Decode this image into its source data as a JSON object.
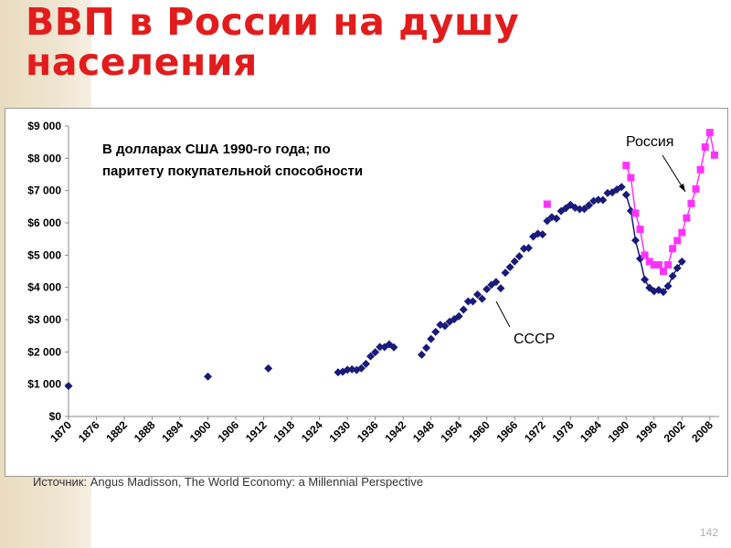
{
  "slide": {
    "title_line1": "ВВП в России на душу",
    "title_line2": "населения",
    "source": "Источник: Angus Madisson, The World Economy: a Millennial Perspective",
    "page_number": "142"
  },
  "colors": {
    "title": "#e21c1c",
    "ussr_series": "#1a1a7a",
    "russia_series": "#ff33ff",
    "background_stripe": "#ebdfc5"
  },
  "chart_data": {
    "type": "scatter",
    "title": "",
    "xlabel": "",
    "ylabel": "",
    "xlim": [
      1870,
      2010
    ],
    "ylim": [
      0,
      9000
    ],
    "grid": false,
    "legend": "none",
    "x_tick_labels": [
      "1870",
      "1876",
      "1882",
      "1888",
      "1894",
      "1900",
      "1906",
      "1912",
      "1918",
      "1924",
      "1930",
      "1936",
      "1942",
      "1948",
      "1954",
      "1960",
      "1966",
      "1972",
      "1978",
      "1984",
      "1990",
      "1996",
      "2002",
      "2008"
    ],
    "y_tick_labels": [
      "$0",
      "$1 000",
      "$2 000",
      "$3 000",
      "$4 000",
      "$5 000",
      "$6 000",
      "$7 000",
      "$8 000",
      "$9 000"
    ],
    "y_tick_values": [
      0,
      1000,
      2000,
      3000,
      4000,
      5000,
      6000,
      7000,
      8000,
      9000
    ],
    "annotations": {
      "note_line1": "В долларах США 1990-го года; по",
      "note_line2": "паритету покупательной способности",
      "russia_label": "Россия",
      "ussr_label": "СССР"
    },
    "series": [
      {
        "name": "СССР",
        "marker": "diamond",
        "connected_from_year": 1990,
        "points": [
          [
            1870,
            943
          ],
          [
            1900,
            1237
          ],
          [
            1913,
            1488
          ],
          [
            1928,
            1370
          ],
          [
            1929,
            1386
          ],
          [
            1930,
            1448
          ],
          [
            1931,
            1462
          ],
          [
            1932,
            1439
          ],
          [
            1933,
            1493
          ],
          [
            1934,
            1630
          ],
          [
            1935,
            1864
          ],
          [
            1936,
            1991
          ],
          [
            1937,
            2156
          ],
          [
            1938,
            2150
          ],
          [
            1939,
            2237
          ],
          [
            1940,
            2144
          ],
          [
            1946,
            1913
          ],
          [
            1947,
            2126
          ],
          [
            1948,
            2402
          ],
          [
            1949,
            2623
          ],
          [
            1950,
            2841
          ],
          [
            1951,
            2806
          ],
          [
            1952,
            2937
          ],
          [
            1953,
            3013
          ],
          [
            1954,
            3106
          ],
          [
            1955,
            3313
          ],
          [
            1956,
            3566
          ],
          [
            1957,
            3566
          ],
          [
            1958,
            3777
          ],
          [
            1959,
            3648
          ],
          [
            1960,
            3945
          ],
          [
            1961,
            4080
          ],
          [
            1962,
            4166
          ],
          [
            1963,
            3972
          ],
          [
            1964,
            4454
          ],
          [
            1965,
            4626
          ],
          [
            1966,
            4806
          ],
          [
            1967,
            4963
          ],
          [
            1968,
            5202
          ],
          [
            1969,
            5220
          ],
          [
            1970,
            5575
          ],
          [
            1971,
            5665
          ],
          [
            1972,
            5643
          ],
          [
            1973,
            6059
          ],
          [
            1974,
            6176
          ],
          [
            1975,
            6135
          ],
          [
            1976,
            6363
          ],
          [
            1977,
            6454
          ],
          [
            1978,
            6559
          ],
          [
            1979,
            6472
          ],
          [
            1980,
            6426
          ],
          [
            1981,
            6432
          ],
          [
            1982,
            6544
          ],
          [
            1983,
            6680
          ],
          [
            1984,
            6715
          ],
          [
            1985,
            6708
          ],
          [
            1986,
            6924
          ],
          [
            1987,
            6943
          ],
          [
            1988,
            7032
          ],
          [
            1989,
            7112
          ],
          [
            1990,
            6871
          ],
          [
            1991,
            6373
          ],
          [
            1992,
            5460
          ],
          [
            1993,
            4890
          ],
          [
            1994,
            4240
          ],
          [
            1995,
            3990
          ],
          [
            1996,
            3880
          ],
          [
            1997,
            3920
          ],
          [
            1998,
            3860
          ],
          [
            1999,
            4040
          ],
          [
            2000,
            4350
          ],
          [
            2001,
            4600
          ],
          [
            2002,
            4800
          ]
        ]
      },
      {
        "name": "Россия",
        "marker": "square",
        "connected_from_year": 1990,
        "points": [
          [
            1973,
            6580
          ],
          [
            1990,
            7780
          ],
          [
            1991,
            7400
          ],
          [
            1992,
            6300
          ],
          [
            1993,
            5800
          ],
          [
            1994,
            5000
          ],
          [
            1995,
            4800
          ],
          [
            1996,
            4700
          ],
          [
            1997,
            4700
          ],
          [
            1998,
            4500
          ],
          [
            1999,
            4700
          ],
          [
            2000,
            5200
          ],
          [
            2001,
            5450
          ],
          [
            2002,
            5700
          ],
          [
            2003,
            6150
          ],
          [
            2004,
            6600
          ],
          [
            2005,
            7050
          ],
          [
            2006,
            7650
          ],
          [
            2007,
            8350
          ],
          [
            2008,
            8800
          ],
          [
            2009,
            8100
          ]
        ]
      }
    ]
  }
}
